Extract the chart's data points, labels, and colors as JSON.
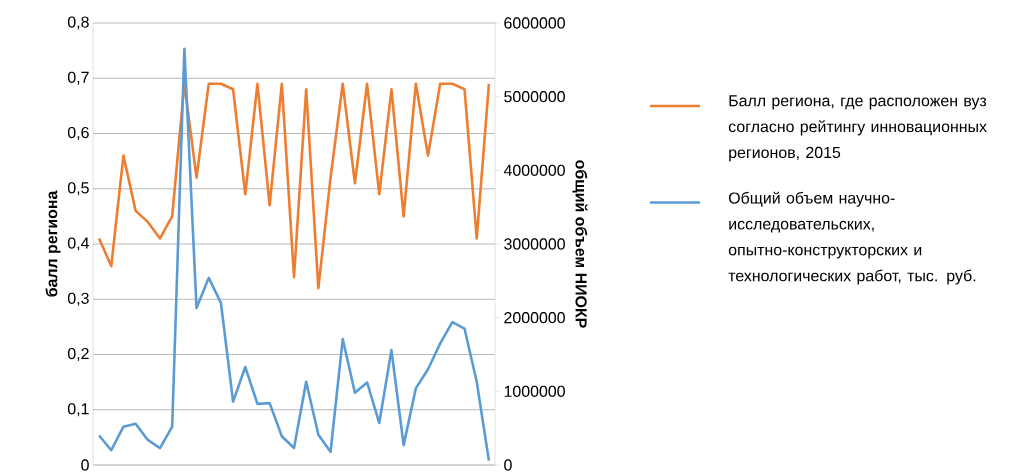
{
  "chart_data": {
    "type": "line",
    "ylabel": "балл региона",
    "y2label": "общий объем НИОКР",
    "categories": [
      null,
      null,
      null,
      null,
      null,
      null,
      null,
      null,
      null,
      null,
      null,
      null,
      null,
      null,
      null,
      null,
      null,
      null,
      null,
      null,
      null,
      null,
      null,
      null,
      null,
      null,
      null,
      null,
      null,
      null,
      null,
      null,
      null
    ],
    "series": [
      {
        "name": "Балл региона, где расположен вуз согласно рейтингу  инновационных регионов, 2015",
        "color": "#ed7d31",
        "axis": "y",
        "values": [
          0.41,
          0.36,
          0.56,
          0.46,
          0.44,
          0.41,
          0.45,
          0.69,
          0.52,
          0.69,
          0.69,
          0.68,
          0.49,
          0.69,
          0.47,
          0.69,
          0.34,
          0.68,
          0.32,
          0.52,
          0.69,
          0.51,
          0.69,
          0.49,
          0.68,
          0.45,
          0.69,
          0.56,
          0.69,
          0.69,
          0.68,
          0.41,
          0.69
        ]
      },
      {
        "name": "Общий объем научно-исследовательских, опытно-конструкторских и технологических работ, тыс. руб.",
        "color": "#5b9bd5",
        "axis": "y2",
        "values": [
          400000,
          200000,
          520000,
          560000,
          340000,
          230000,
          520000,
          5650000,
          2130000,
          2540000,
          2200000,
          860000,
          1330000,
          830000,
          840000,
          390000,
          230000,
          1130000,
          410000,
          180000,
          1710000,
          980000,
          1120000,
          570000,
          1560000,
          270000,
          1040000,
          1300000,
          1650000,
          1940000,
          1850000,
          1130000,
          60000
        ]
      }
    ],
    "ylim": [
      0,
      0.8
    ],
    "yticks": [
      0,
      {
        "value": 0.1,
        "label": "0,1"
      },
      {
        "value": 0.2,
        "label": "0,2"
      },
      {
        "value": 0.3,
        "label": "0,3"
      },
      {
        "value": 0.4,
        "label": "0,4"
      },
      {
        "value": 0.5,
        "label": "0,5"
      },
      {
        "value": 0.6,
        "label": "0,6"
      },
      {
        "value": 0.7,
        "label": "0,7"
      },
      {
        "value": 0.8,
        "label": "0,8"
      }
    ],
    "y2lim": [
      0,
      6000000
    ],
    "y2ticks": [
      0,
      1000000,
      2000000,
      3000000,
      4000000,
      5000000,
      6000000
    ],
    "grid": "y",
    "legend": "right",
    "marker": "none",
    "line_style": "solid"
  }
}
